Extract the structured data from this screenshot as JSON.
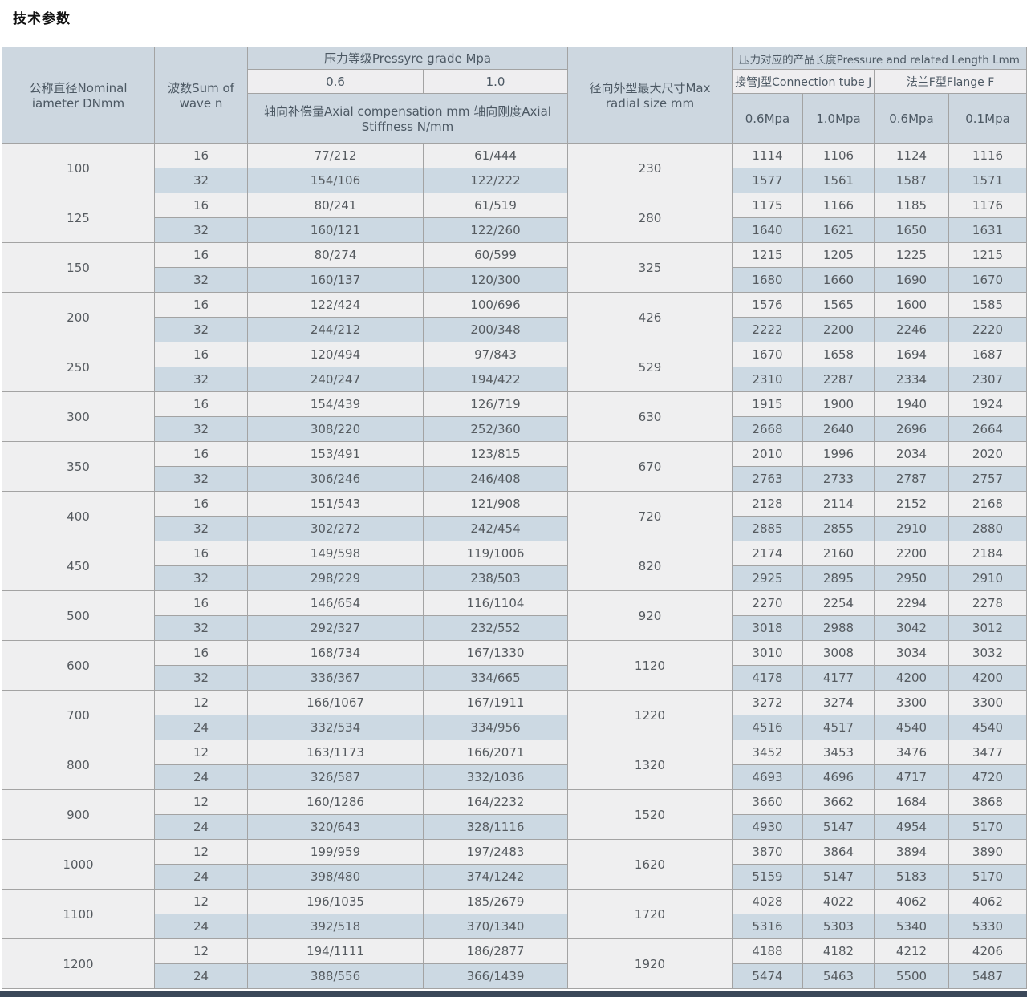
{
  "page": {
    "title": "技术参数",
    "footer_strip_color": "#3b4859"
  },
  "table": {
    "header": {
      "col_dn": "公称直径Nominal iameter DNmm",
      "col_wave": "波数Sum of wave n",
      "pressure_group": "压力等级Pressyre grade Mpa",
      "pressure_cols": [
        "0.6",
        "1.0"
      ],
      "pressure_note": "轴向补偿量Axial compensation mm 轴向刚度Axial Stiffness N/mm",
      "col_radial": "径向外型最大尺寸Max radial size mm",
      "length_group": "压力对应的产品长度Pressure and related Length Lmm",
      "length_subgroups": [
        "接管J型Connection tube J",
        "法兰F型Flange F"
      ],
      "length_cols": [
        "0.6Mpa",
        "1.0Mpa",
        "0.6Mpa",
        "0.1Mpa"
      ]
    },
    "rows": [
      {
        "dn": "100",
        "radial": "230",
        "sub": [
          {
            "wave": "16",
            "comp": [
              "77/212",
              "61/444"
            ],
            "len": [
              "1114",
              "1106",
              "1124",
              "1116"
            ]
          },
          {
            "wave": "32",
            "comp": [
              "154/106",
              "122/222"
            ],
            "len": [
              "1577",
              "1561",
              "1587",
              "1571"
            ]
          }
        ]
      },
      {
        "dn": "125",
        "radial": "280",
        "sub": [
          {
            "wave": "16",
            "comp": [
              "80/241",
              "61/519"
            ],
            "len": [
              "1175",
              "1166",
              "1185",
              "1176"
            ]
          },
          {
            "wave": "32",
            "comp": [
              "160/121",
              "122/260"
            ],
            "len": [
              "1640",
              "1621",
              "1650",
              "1631"
            ]
          }
        ]
      },
      {
        "dn": "150",
        "radial": "325",
        "sub": [
          {
            "wave": "16",
            "comp": [
              "80/274",
              "60/599"
            ],
            "len": [
              "1215",
              "1205",
              "1225",
              "1215"
            ]
          },
          {
            "wave": "32",
            "comp": [
              "160/137",
              "120/300"
            ],
            "len": [
              "1680",
              "1660",
              "1690",
              "1670"
            ]
          }
        ]
      },
      {
        "dn": "200",
        "radial": "426",
        "sub": [
          {
            "wave": "16",
            "comp": [
              "122/424",
              "100/696"
            ],
            "len": [
              "1576",
              "1565",
              "1600",
              "1585"
            ]
          },
          {
            "wave": "32",
            "comp": [
              "244/212",
              "200/348"
            ],
            "len": [
              "2222",
              "2200",
              "2246",
              "2220"
            ]
          }
        ]
      },
      {
        "dn": "250",
        "radial": "529",
        "sub": [
          {
            "wave": "16",
            "comp": [
              "120/494",
              "97/843"
            ],
            "len": [
              "1670",
              "1658",
              "1694",
              "1687"
            ]
          },
          {
            "wave": "32",
            "comp": [
              "240/247",
              "194/422"
            ],
            "len": [
              "2310",
              "2287",
              "2334",
              "2307"
            ]
          }
        ]
      },
      {
        "dn": "300",
        "radial": "630",
        "sub": [
          {
            "wave": "16",
            "comp": [
              "154/439",
              "126/719"
            ],
            "len": [
              "1915",
              "1900",
              "1940",
              "1924"
            ]
          },
          {
            "wave": "32",
            "comp": [
              "308/220",
              "252/360"
            ],
            "len": [
              "2668",
              "2640",
              "2696",
              "2664"
            ]
          }
        ]
      },
      {
        "dn": "350",
        "radial": "670",
        "sub": [
          {
            "wave": "16",
            "comp": [
              "153/491",
              "123/815"
            ],
            "len": [
              "2010",
              "1996",
              "2034",
              "2020"
            ]
          },
          {
            "wave": "32",
            "comp": [
              "306/246",
              "246/408"
            ],
            "len": [
              "2763",
              "2733",
              "2787",
              "2757"
            ]
          }
        ]
      },
      {
        "dn": "400",
        "radial": "720",
        "sub": [
          {
            "wave": "16",
            "comp": [
              "151/543",
              "121/908"
            ],
            "len": [
              "2128",
              "2114",
              "2152",
              "2168"
            ]
          },
          {
            "wave": "32",
            "comp": [
              "302/272",
              "242/454"
            ],
            "len": [
              "2885",
              "2855",
              "2910",
              "2880"
            ]
          }
        ]
      },
      {
        "dn": "450",
        "radial": "820",
        "sub": [
          {
            "wave": "16",
            "comp": [
              "149/598",
              "119/1006"
            ],
            "len": [
              "2174",
              "2160",
              "2200",
              "2184"
            ]
          },
          {
            "wave": "32",
            "comp": [
              "298/229",
              "238/503"
            ],
            "len": [
              "2925",
              "2895",
              "2950",
              "2910"
            ]
          }
        ]
      },
      {
        "dn": "500",
        "radial": "920",
        "sub": [
          {
            "wave": "16",
            "comp": [
              "146/654",
              "116/1104"
            ],
            "len": [
              "2270",
              "2254",
              "2294",
              "2278"
            ]
          },
          {
            "wave": "32",
            "comp": [
              "292/327",
              "232/552"
            ],
            "len": [
              "3018",
              "2988",
              "3042",
              "3012"
            ]
          }
        ]
      },
      {
        "dn": "600",
        "radial": "1120",
        "sub": [
          {
            "wave": "16",
            "comp": [
              "168/734",
              "167/1330"
            ],
            "len": [
              "3010",
              "3008",
              "3034",
              "3032"
            ]
          },
          {
            "wave": "32",
            "comp": [
              "336/367",
              "334/665"
            ],
            "len": [
              "4178",
              "4177",
              "4200",
              "4200"
            ]
          }
        ]
      },
      {
        "dn": "700",
        "radial": "1220",
        "sub": [
          {
            "wave": "12",
            "comp": [
              "166/1067",
              "167/1911"
            ],
            "len": [
              "3272",
              "3274",
              "3300",
              "3300"
            ]
          },
          {
            "wave": "24",
            "comp": [
              "332/534",
              "334/956"
            ],
            "len": [
              "4516",
              "4517",
              "4540",
              "4540"
            ]
          }
        ]
      },
      {
        "dn": "800",
        "radial": "1320",
        "sub": [
          {
            "wave": "12",
            "comp": [
              "163/1173",
              "166/2071"
            ],
            "len": [
              "3452",
              "3453",
              "3476",
              "3477"
            ]
          },
          {
            "wave": "24",
            "comp": [
              "326/587",
              "332/1036"
            ],
            "len": [
              "4693",
              "4696",
              "4717",
              "4720"
            ]
          }
        ]
      },
      {
        "dn": "900",
        "radial": "1520",
        "sub": [
          {
            "wave": "12",
            "comp": [
              "160/1286",
              "164/2232"
            ],
            "len": [
              "3660",
              "3662",
              "1684",
              "3868"
            ]
          },
          {
            "wave": "24",
            "comp": [
              "320/643",
              "328/1116"
            ],
            "len": [
              "4930",
              "5147",
              "4954",
              "5170"
            ]
          }
        ]
      },
      {
        "dn": "1000",
        "radial": "1620",
        "sub": [
          {
            "wave": "12",
            "comp": [
              "199/959",
              "197/2483"
            ],
            "len": [
              "3870",
              "3864",
              "3894",
              "3890"
            ]
          },
          {
            "wave": "24",
            "comp": [
              "398/480",
              "374/1242"
            ],
            "len": [
              "5159",
              "5147",
              "5183",
              "5170"
            ]
          }
        ]
      },
      {
        "dn": "1100",
        "radial": "1720",
        "sub": [
          {
            "wave": "12",
            "comp": [
              "196/1035",
              "185/2679"
            ],
            "len": [
              "4028",
              "4022",
              "4062",
              "4062"
            ]
          },
          {
            "wave": "24",
            "comp": [
              "392/518",
              "370/1340"
            ],
            "len": [
              "5316",
              "5303",
              "5340",
              "5330"
            ]
          }
        ]
      },
      {
        "dn": "1200",
        "radial": "1920",
        "sub": [
          {
            "wave": "12",
            "comp": [
              "194/1111",
              "186/2877"
            ],
            "len": [
              "4188",
              "4182",
              "4212",
              "4206"
            ]
          },
          {
            "wave": "24",
            "comp": [
              "388/556",
              "366/1439"
            ],
            "len": [
              "5474",
              "5463",
              "5500",
              "5487"
            ]
          }
        ]
      }
    ]
  }
}
